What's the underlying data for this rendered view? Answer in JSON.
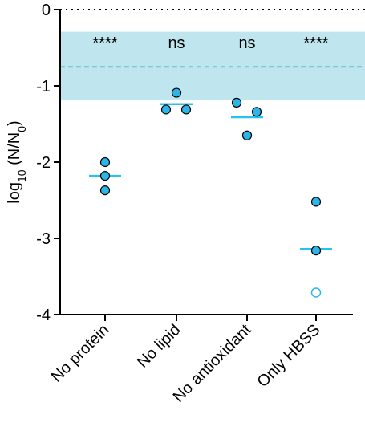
{
  "chart_data": {
    "type": "dot",
    "categories": [
      "No protein",
      "No lipid",
      "No antioxidant",
      "Only HBSS"
    ],
    "points": [
      [
        -2.0,
        -2.18,
        -2.37
      ],
      [
        -1.09,
        -1.31,
        -1.31
      ],
      [
        -1.22,
        -1.34,
        -1.65
      ],
      [
        -2.52,
        -3.16,
        -3.71
      ]
    ],
    "marker_fill": [
      [
        "filled",
        "filled",
        "filled"
      ],
      [
        "filled",
        "filled",
        "filled"
      ],
      [
        "filled",
        "filled",
        "filled"
      ],
      [
        "filled",
        "filled",
        "open"
      ]
    ],
    "means": [
      -2.18,
      -1.24,
      -1.41,
      -3.14
    ],
    "annotations": [
      "****",
      "ns",
      "ns",
      "****"
    ],
    "ylabel_parts": [
      "log",
      "10",
      " (N/N",
      "0",
      ")"
    ],
    "ylim": [
      -4,
      0
    ],
    "yticks": [
      0,
      -1,
      -2,
      -3,
      -4
    ],
    "band": [
      -1.19,
      -0.29
    ],
    "reference_line": -0.75,
    "baseline": 0,
    "color": "#2bb5e8",
    "mean_color": "#27c3ef",
    "band_color": "#bfe6ee",
    "reference_color": "#5ec6d2"
  }
}
